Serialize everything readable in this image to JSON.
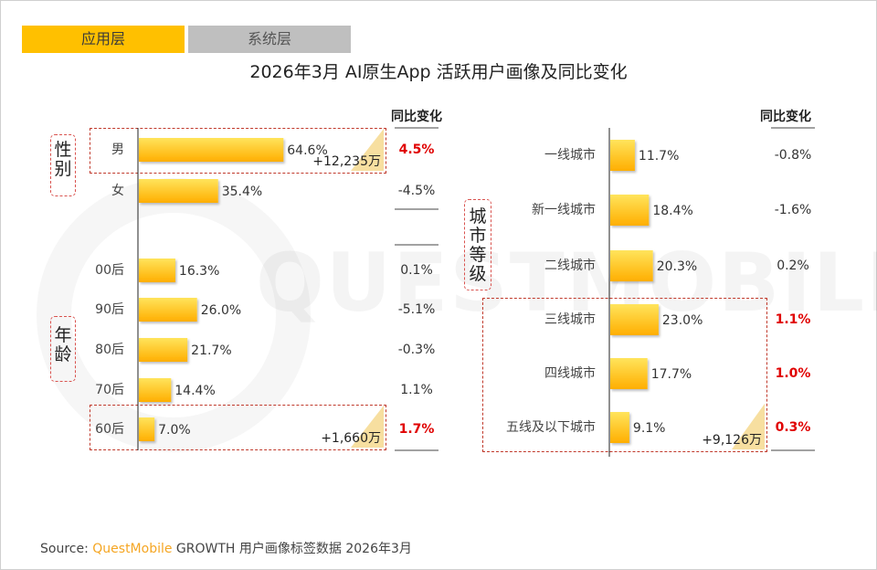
{
  "tabs": {
    "active": "应用层",
    "inactive": "系统层"
  },
  "title": "2026年3月 AI原生App 活跃用户画像及同比变化",
  "yoy_header": "同比变化",
  "groups": {
    "gender": "性别",
    "age": "年龄",
    "city": "城市等级"
  },
  "watermark": "QUESTMOBILE",
  "source": {
    "prefix": "Source:",
    "brand": "QuestMobile",
    "rest": " GROWTH 用户画像标签数据 2026年3月"
  },
  "colors": {
    "bar_start": "#FFE45C",
    "bar_end": "#FFAE00",
    "accent": "#FFC000",
    "red": "#E00000"
  },
  "chart_data": [
    {
      "type": "bar",
      "title": "性别与年龄",
      "categories": [
        "男",
        "女",
        "00后",
        "90后",
        "80后",
        "70后",
        "60后"
      ],
      "values": [
        64.6,
        35.4,
        16.3,
        26.0,
        21.7,
        14.4,
        7.0
      ],
      "value_labels": [
        "64.6%",
        "35.4%",
        "16.3%",
        "26.0%",
        "21.7%",
        "14.4%",
        "7.0%"
      ],
      "yoy": [
        "4.5%",
        "-4.5%",
        "0.1%",
        "-5.1%",
        "-0.3%",
        "1.1%",
        "1.7%"
      ],
      "yoy_highlight": [
        true,
        false,
        false,
        false,
        false,
        false,
        true
      ],
      "annotations": [
        {
          "category": "男",
          "text": "+12,235万"
        },
        {
          "category": "60后",
          "text": "+1,660万"
        }
      ],
      "unit": "%"
    },
    {
      "type": "bar",
      "title": "城市等级",
      "categories": [
        "一线城市",
        "新一线城市",
        "二线城市",
        "三线城市",
        "四线城市",
        "五线及以下城市"
      ],
      "values": [
        11.7,
        18.4,
        20.3,
        23.0,
        17.7,
        9.1
      ],
      "value_labels": [
        "11.7%",
        "18.4%",
        "20.3%",
        "23.0%",
        "17.7%",
        "9.1%"
      ],
      "yoy": [
        "-0.8%",
        "-1.6%",
        "0.2%",
        "1.1%",
        "1.0%",
        "0.3%"
      ],
      "yoy_highlight": [
        false,
        false,
        false,
        true,
        true,
        true
      ],
      "annotations": [
        {
          "category": "五线及以下城市",
          "text": "+9,126万"
        }
      ],
      "unit": "%"
    }
  ]
}
